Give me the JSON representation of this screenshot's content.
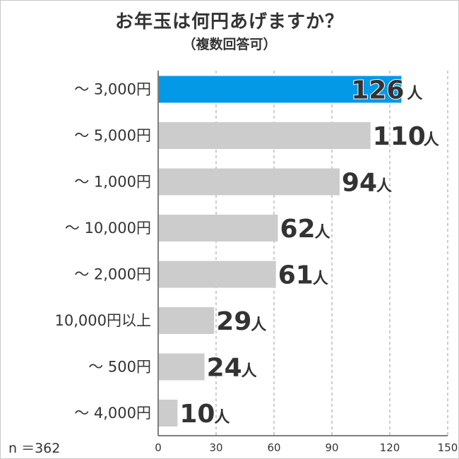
{
  "title": "お年玉は何円あげますか？",
  "subtitle": "（複数回答可）",
  "note": "n ＝362",
  "unit": "人",
  "colors": {
    "highlight": "#0499e6",
    "bar": "#cccccc",
    "highlight_text": "#0d6fb6",
    "text": "#333333"
  },
  "chart_data": {
    "type": "bar",
    "orientation": "horizontal",
    "categories": [
      "～ 3,000円",
      "～ 5,000円",
      "～ 1,000円",
      "～ 10,000円",
      "～ 2,000円",
      "10,000円以上",
      "～ 500円",
      "～ 4,000円"
    ],
    "values": [
      126,
      110,
      94,
      62,
      61,
      29,
      24,
      10
    ],
    "highlight_index": 0,
    "xlim": [
      0,
      150
    ],
    "xticks": [
      0,
      30,
      60,
      90,
      120,
      150
    ],
    "grid": true
  }
}
